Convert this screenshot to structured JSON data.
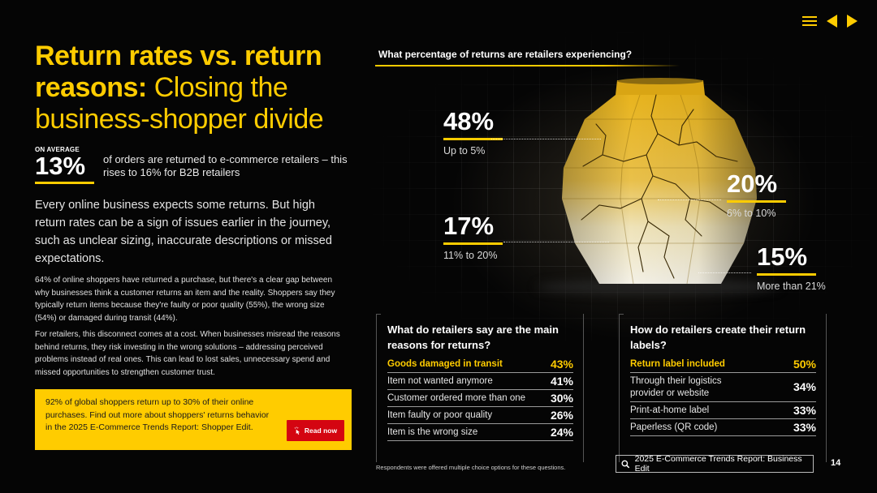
{
  "title": {
    "bold": "Return rates vs. return reasons:",
    "light": "Closing the business-shopper divide"
  },
  "stat": {
    "label": "ON AVERAGE",
    "value": "13%",
    "description": "of orders are returned to e-commerce retailers – this rises to 16% for B2B retailers"
  },
  "intro": "Every online business expects some returns. But high return rates can be a sign of issues earlier in the journey, such as unclear sizing, inaccurate descriptions or missed expectations.",
  "paragraphs": [
    "64% of online shoppers have returned a purchase, but there's a clear gap between why businesses think a customer returns an item and the reality. Shoppers say they typically return items because they're faulty or poor quality (55%), the wrong size (54%) or damaged during transit (44%).",
    "For retailers, this disconnect comes at a cost. When businesses misread the reasons behind returns, they risk investing in the wrong solutions – addressing perceived problems instead of real ones. This can lead to lost sales, unnecessary spend and missed opportunities to strengthen customer trust."
  ],
  "promo": {
    "text": "92% of global shoppers return up to 30% of their online purchases. Find out more about shoppers' returns behavior in the 2025 E-Commerce Trends Report: Shopper Edit.",
    "button": "Read now"
  },
  "chart": {
    "title": "What percentage of returns are retailers experiencing?",
    "callouts": [
      {
        "value": "48%",
        "label": "Up to 5%"
      },
      {
        "value": "20%",
        "label": "6% to 10%"
      },
      {
        "value": "17%",
        "label": "11% to 20%"
      },
      {
        "value": "15%",
        "label": "More than 21%"
      }
    ]
  },
  "chart_data": {
    "type": "table",
    "title": "What percentage of returns are retailers experiencing?",
    "categories": [
      "Up to 5%",
      "6% to 10%",
      "11% to 20%",
      "More than 21%"
    ],
    "values": [
      48,
      20,
      17,
      15
    ],
    "unit": "%"
  },
  "reasons": {
    "title": "What do retailers say are the main reasons for returns?",
    "rows": [
      {
        "label": "Goods damaged in transit",
        "value": "43%"
      },
      {
        "label": "Item not wanted anymore",
        "value": "41%"
      },
      {
        "label": "Customer ordered more than one",
        "value": "30%"
      },
      {
        "label": "Item faulty or poor quality",
        "value": "26%"
      },
      {
        "label": "Item is the wrong size",
        "value": "24%"
      }
    ]
  },
  "labels": {
    "title": "How do retailers create their return labels?",
    "rows": [
      {
        "label": "Return label included",
        "value": "50%"
      },
      {
        "label": "Through their logistics provider or website",
        "value": "34%"
      },
      {
        "label": "Print-at-home label",
        "value": "33%"
      },
      {
        "label": "Paperless (QR code)",
        "value": "33%"
      }
    ]
  },
  "footnote": "Respondents were offered multiple choice options for these questions.",
  "footer": {
    "link": "2025 E-Commerce Trends Report: Business Edit",
    "page": "14"
  },
  "colors": {
    "accent": "#ffcc00",
    "button": "#d40511",
    "background": "#000000"
  },
  "icons": {
    "nav": [
      "menu-icon",
      "prev-arrow-icon",
      "next-arrow-icon"
    ],
    "footer": "search-icon",
    "button": "cursor-click-icon"
  }
}
